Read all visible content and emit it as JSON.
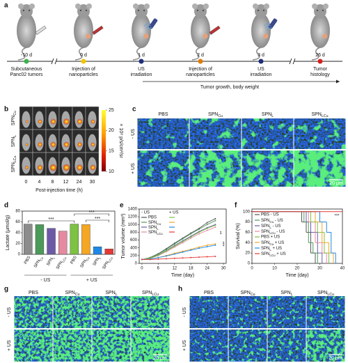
{
  "panels": {
    "a": {
      "label": "a",
      "days": [
        "-10 d",
        "0 d",
        "1 d",
        "2 d",
        "3 d",
        "26 d"
      ],
      "events": [
        [
          "Subcutaneous",
          "Panc02 tumors"
        ],
        [
          "Injection of",
          "nanoparticles"
        ],
        [
          "US",
          "irradiation"
        ],
        [
          "Injection of",
          "nanoparticles"
        ],
        [
          "US",
          "irradiation"
        ],
        [
          "Tumor",
          "histology"
        ]
      ],
      "span": "Tumor growth, body weight"
    },
    "b": {
      "label": "b",
      "rows": [
        "SPNCu",
        "SPNL",
        "SPNLCu"
      ],
      "times": [
        0,
        4,
        8,
        12,
        24,
        30
      ],
      "xlabel": "Post-injection time (h)",
      "colorbar_ticks": [
        25,
        20,
        15,
        10
      ],
      "colorbar_label": "× 10⁸ p/s/cm²/sr"
    },
    "c": {
      "label": "c",
      "columns": [
        "PBS",
        "SPNCu",
        "SPNL",
        "SPNLCu"
      ],
      "rows": [
        "- US",
        "+ US"
      ],
      "scale_bar": "20 μm"
    },
    "g": {
      "label": "g",
      "columns": [
        "PBS",
        "SPNCu",
        "SPNL",
        "SPNLCu"
      ],
      "rows": [
        "- US",
        "+ US"
      ],
      "scale_bar": "20 μm"
    },
    "h": {
      "label": "h",
      "columns": [
        "PBS",
        "SPNCu",
        "SPNL",
        "SPNLCu"
      ],
      "rows": [
        "- US",
        "+ US"
      ],
      "scale_bar": "20 μm"
    }
  },
  "chart_data": [
    {
      "type": "bar",
      "label": "d",
      "ylabel": "Lactate (μmol/g)",
      "categories": [
        "PBS",
        "SPNCu",
        "SPNL",
        "SPNLCu",
        "PBS",
        "SPNCu",
        "SPNL",
        "SPNLCu"
      ],
      "groups": [
        "- US",
        "+ US"
      ],
      "values": [
        56,
        55,
        48,
        43,
        56,
        55,
        14,
        10
      ],
      "colors": [
        "#8c8c8c",
        "#4c9a5a",
        "#6c5aa8",
        "#e58aa0",
        "#7dc242",
        "#f5a623",
        "#1e88e5",
        "#e53935"
      ],
      "ylim": [
        0,
        80
      ],
      "yticks": [
        0,
        20,
        40,
        60,
        80
      ],
      "annotations": [
        "***",
        "***",
        "***"
      ]
    },
    {
      "type": "line",
      "label": "e",
      "xlabel": "Time (day)",
      "ylabel": "Tumor volume (mm³)",
      "x": [
        0,
        3,
        6,
        9,
        12,
        15,
        18,
        21,
        24,
        27
      ],
      "series": [
        {
          "color": "#555555",
          "values": [
            100,
            150,
            250,
            380,
            520,
            650,
            780,
            900,
            1050,
            1150
          ]
        },
        {
          "color": "#4c9a5a",
          "values": [
            100,
            140,
            240,
            360,
            500,
            630,
            760,
            880,
            1000,
            1100
          ]
        },
        {
          "color": "#6c5aa8",
          "values": [
            100,
            130,
            220,
            330,
            460,
            580,
            700,
            820,
            920,
            1000
          ]
        },
        {
          "color": "#e58aa0",
          "values": [
            100,
            130,
            200,
            300,
            420,
            530,
            650,
            760,
            850,
            930
          ]
        },
        {
          "color": "#7dc242",
          "values": [
            100,
            130,
            210,
            320,
            440,
            560,
            680,
            800,
            900,
            980
          ]
        },
        {
          "color": "#f5a623",
          "values": [
            100,
            110,
            150,
            200,
            260,
            310,
            360,
            420,
            470,
            500
          ]
        },
        {
          "color": "#1e88e5",
          "values": [
            100,
            110,
            150,
            190,
            240,
            290,
            340,
            390,
            430,
            470
          ]
        },
        {
          "color": "#e53935",
          "values": [
            100,
            100,
            110,
            120,
            130,
            140,
            150,
            160,
            170,
            180
          ]
        }
      ],
      "xlim": [
        -1,
        31
      ],
      "xticks": [
        0,
        6,
        12,
        18,
        24,
        30
      ],
      "ylim": [
        0,
        1400
      ],
      "yticks": [
        0,
        200,
        400,
        600,
        800,
        1000,
        1200,
        1400
      ],
      "legend": {
        "headers": [
          "- US",
          "+ US"
        ],
        "labels": [
          "PBS",
          "SPNCu",
          "SPNL",
          "SPNLCu"
        ]
      },
      "annotations": [
        "**",
        "***"
      ]
    },
    {
      "type": "step",
      "label": "f",
      "xlabel": "Time (day)",
      "ylabel": "Survival (%)",
      "series": [
        {
          "name": "PBS - US",
          "color": "#555555",
          "x": [
            0,
            22,
            24,
            26,
            28
          ],
          "values": [
            100,
            80,
            60,
            20,
            0
          ]
        },
        {
          "name": "SPNCu - US",
          "color": "#4c9a5a",
          "x": [
            0,
            23,
            25,
            27,
            29
          ],
          "values": [
            100,
            80,
            40,
            20,
            0
          ]
        },
        {
          "name": "SPNL - US",
          "color": "#6c5aa8",
          "x": [
            0,
            24,
            26,
            29,
            31
          ],
          "values": [
            100,
            80,
            60,
            20,
            0
          ]
        },
        {
          "name": "SPNLCu - US",
          "color": "#e58aa0",
          "x": [
            0,
            25,
            28,
            31,
            33
          ],
          "values": [
            100,
            80,
            40,
            20,
            0
          ]
        },
        {
          "name": "PBS + US",
          "color": "#7dc242",
          "x": [
            0,
            26,
            29,
            32,
            34
          ],
          "values": [
            100,
            80,
            60,
            20,
            0
          ]
        },
        {
          "name": "SPNCu + US",
          "color": "#f5a623",
          "x": [
            0,
            28,
            31,
            34,
            36
          ],
          "values": [
            100,
            80,
            40,
            20,
            0
          ]
        },
        {
          "name": "SPNL + US",
          "color": "#1e88e5",
          "x": [
            0,
            30,
            33,
            35,
            37
          ],
          "values": [
            100,
            80,
            60,
            20,
            0
          ]
        },
        {
          "name": "SPNLCu + US",
          "color": "#e53935",
          "x": [
            0,
            40
          ],
          "values": [
            100,
            100
          ]
        }
      ],
      "xlim": [
        0,
        40
      ],
      "xticks": [
        0,
        10,
        20,
        30,
        40
      ],
      "ylim": [
        0,
        105
      ],
      "yticks": [
        0,
        20,
        40,
        60,
        80,
        100
      ],
      "annotations": [
        "***"
      ]
    }
  ]
}
